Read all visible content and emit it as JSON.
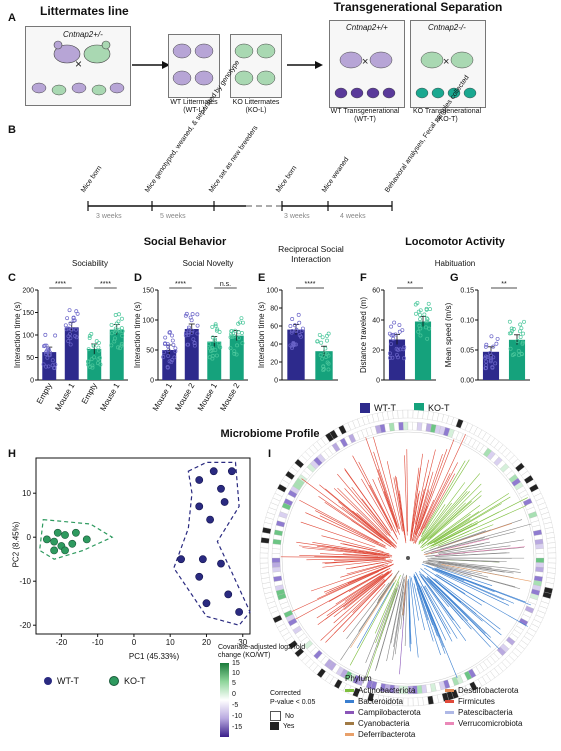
{
  "panelA": {
    "label": "A",
    "title_left": "Littermates line",
    "title_right": "Transgenerational Separation",
    "genotype_het": "Cntnap2+/-",
    "genotype_wt": "Cntnap2+/+",
    "genotype_ko": "Cntnap2-/-",
    "cross": "×",
    "wt_l": "WT Littermates",
    "wt_l_code": "(WT-L)",
    "ko_l": "KO Littermates",
    "ko_l_code": "(KO-L)",
    "wt_t": "WT Transgenerational",
    "wt_t_code": "(WT-T)",
    "ko_t": "KO Transgenerational",
    "ko_t_code": "(KO-T)"
  },
  "panelB": {
    "label": "B",
    "events": [
      "Mice born",
      "Mice genotyped, weaned, & separated by genotype",
      "Mice set as new breeders",
      "Mice born",
      "Mice weaned",
      "Behavioral analyses, Fecal samples collected"
    ],
    "intervals": [
      "3 weeks",
      "5 weeks",
      "3 weeks",
      "4 weeks"
    ]
  },
  "sections": {
    "social": "Social Behavior",
    "reciprocal": "Reciprocal Social Interaction",
    "locomotor": "Locomotor Activity",
    "microbiome": "Microbiome Profile"
  },
  "panelC": {
    "label": "C",
    "title": "Sociability",
    "ylabel": "Interaction time (s)",
    "categories": [
      "Empty",
      "Mouse 1",
      "Empty",
      "Mouse 1"
    ],
    "values": [
      62,
      117,
      69,
      112
    ],
    "ylim": [
      0,
      200
    ],
    "ticks": [
      "0",
      "50",
      "100",
      "150",
      "200"
    ],
    "sig": [
      "****",
      "****"
    ]
  },
  "panelD": {
    "label": "D",
    "title": "Social Novelty",
    "ylabel": "Interaction time (s)",
    "categories": [
      "Mouse 1",
      "Mouse 2",
      "Mouse 1",
      "Mouse 2"
    ],
    "values": [
      50,
      85,
      64,
      74
    ],
    "ylim": [
      0,
      150
    ],
    "ticks": [
      "0",
      "50",
      "100",
      "150"
    ],
    "sig": [
      "****",
      "n.s."
    ]
  },
  "panelE": {
    "label": "E",
    "ylabel": "Interaction time (s)",
    "values": [
      56,
      32
    ],
    "ylim": [
      0,
      100
    ],
    "ticks": [
      "0",
      "20",
      "40",
      "60",
      "80",
      "100"
    ],
    "sig": [
      "****"
    ]
  },
  "panelF": {
    "label": "F",
    "title": "Habituation",
    "ylabel": "Distance traveled (m)",
    "values": [
      27,
      39
    ],
    "ylim": [
      0,
      60
    ],
    "ticks": [
      "0",
      "20",
      "40",
      "60"
    ],
    "sig": [
      "**"
    ]
  },
  "panelG": {
    "label": "G",
    "ylabel": "Mean speed (m/s)",
    "values": [
      0.047,
      0.067
    ],
    "ylim": [
      0,
      0.15
    ],
    "ticks": [
      "0.00",
      "0.05",
      "0.10",
      "0.15"
    ],
    "sig": [
      "**"
    ]
  },
  "behavior_legend": {
    "wt": "WT-T",
    "ko": "KO-T",
    "wt_color": "#2d2a8c",
    "ko_color": "#15a27c"
  },
  "panelH": {
    "label": "H",
    "xlabel": "PC1 (45.33%)",
    "ylabel": "PC2 (8.45%)",
    "xticks": [
      "-20",
      "-10",
      "0",
      "10",
      "20",
      "30"
    ],
    "yticks": [
      "-20",
      "-10",
      "0",
      "10"
    ],
    "legend_wt": "WT-T",
    "legend_ko": "KO-T",
    "chart_data": {
      "type": "scatter",
      "xlim": [
        -27,
        32
      ],
      "ylim": [
        -22,
        18
      ],
      "series": [
        {
          "name": "WT-T",
          "color": "#2a2a80",
          "points": [
            [
              22,
              15
            ],
            [
              27,
              15
            ],
            [
              18,
              13
            ],
            [
              24,
              11
            ],
            [
              25,
              8
            ],
            [
              18,
              7
            ],
            [
              21,
              4
            ],
            [
              13,
              -5
            ],
            [
              19,
              -5
            ],
            [
              24,
              -6
            ],
            [
              18,
              -9
            ],
            [
              26,
              -13
            ],
            [
              20,
              -15
            ],
            [
              29,
              -17
            ]
          ]
        },
        {
          "name": "KO-T",
          "color": "#2e9a5f",
          "points": [
            [
              -21,
              1
            ],
            [
              -19,
              0.5
            ],
            [
              -16,
              1
            ],
            [
              -22,
              -1
            ],
            [
              -20,
              -2
            ],
            [
              -24,
              -0.5
            ],
            [
              -17,
              -1.5
            ],
            [
              -13,
              -0.5
            ],
            [
              -22,
              -3
            ],
            [
              -19,
              -3
            ]
          ]
        }
      ]
    }
  },
  "panelI": {
    "label": "I",
    "heat_title": "Covariate-adjusted log2 fold change (KO/WT)",
    "heat_ticks": [
      "15",
      "10",
      "5",
      "0",
      "-5",
      "-10",
      "-15"
    ],
    "corrected_title": "Corrected",
    "pvalue": "P-value < 0.05",
    "no": "No",
    "yes": "Yes",
    "phylum_title": "Phylum",
    "phyla": [
      {
        "name": "Actinobacteriota",
        "color": "#7fbf3f"
      },
      {
        "name": "Bacteroidota",
        "color": "#3a7fd0"
      },
      {
        "name": "Campilobacterota",
        "color": "#8a55b8"
      },
      {
        "name": "Cyanobacteria",
        "color": "#a07a45"
      },
      {
        "name": "Deferribacterota",
        "color": "#e8a06a"
      },
      {
        "name": "Desulfobacterota",
        "color": "#e08a55"
      },
      {
        "name": "Firmicutes",
        "color": "#e04a3a"
      },
      {
        "name": "Patescibacteria",
        "color": "#aeb8e6"
      },
      {
        "name": "Verrucomicrobiota",
        "color": "#ea88b8"
      }
    ]
  }
}
